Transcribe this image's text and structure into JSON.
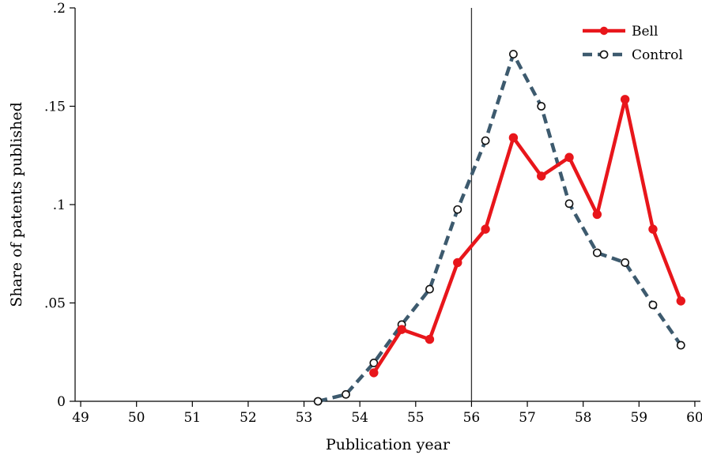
{
  "chart_data": {
    "type": "line",
    "title": "",
    "xlabel": "Publication year",
    "ylabel": "Share of patents published",
    "xlim": [
      48.9,
      60.1
    ],
    "ylim": [
      0,
      0.2
    ],
    "xticks": [
      49,
      50,
      51,
      52,
      53,
      54,
      55,
      56,
      57,
      58,
      59,
      60
    ],
    "xtick_labels": [
      "49",
      "50",
      "51",
      "52",
      "53",
      "54",
      "55",
      "56",
      "57",
      "58",
      "59",
      "60"
    ],
    "yticks": [
      0,
      0.05,
      0.1,
      0.15,
      0.2
    ],
    "ytick_labels": [
      "0",
      ".05",
      ".1",
      ".15",
      ".2"
    ],
    "grid": false,
    "legend_position": "top-right",
    "reference_line_x": 56,
    "series": [
      {
        "name": "Bell",
        "color": "#e8161b",
        "style": "solid",
        "marker": "filled-circle",
        "x": [
          54.25,
          54.75,
          55.25,
          55.75,
          56.25,
          56.75,
          57.25,
          57.75,
          58.25,
          58.75,
          59.25,
          59.75
        ],
        "y": [
          0.0145,
          0.0365,
          0.0315,
          0.0705,
          0.0875,
          0.134,
          0.1145,
          0.124,
          0.095,
          0.1535,
          0.0875,
          0.051
        ]
      },
      {
        "name": "Control",
        "color": "#3d5a6e",
        "style": "dashed",
        "marker": "hollow-circle",
        "x": [
          53.25,
          53.75,
          54.25,
          54.75,
          55.25,
          55.75,
          56.25,
          56.75,
          57.25,
          57.75,
          58.25,
          58.75,
          59.25,
          59.75
        ],
        "y": [
          0.0,
          0.0035,
          0.0195,
          0.039,
          0.057,
          0.0975,
          0.1325,
          0.1765,
          0.15,
          0.1005,
          0.0755,
          0.0705,
          0.049,
          0.0285
        ]
      }
    ]
  }
}
